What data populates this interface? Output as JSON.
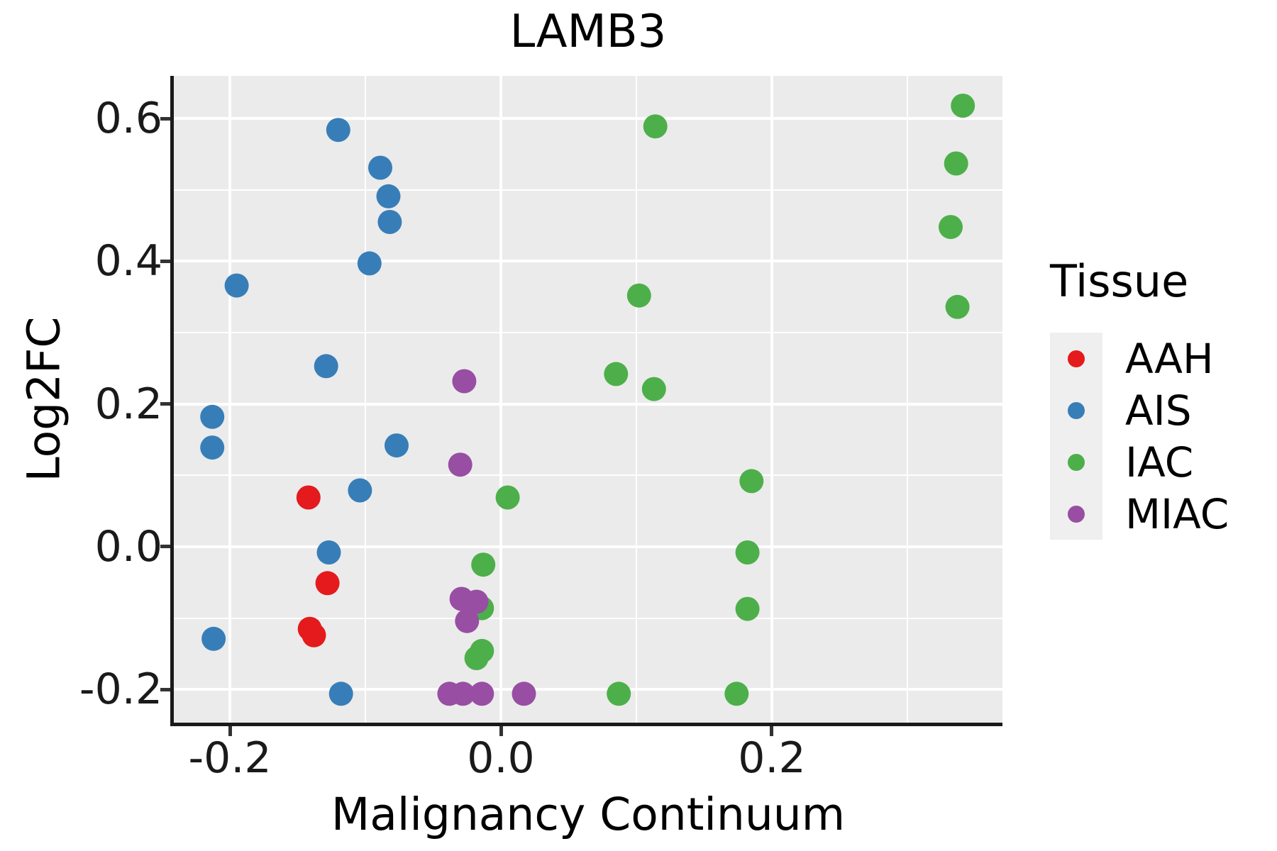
{
  "title": "LAMB3",
  "x_axis": {
    "title": "Malignancy Continuum"
  },
  "y_axis": {
    "title": "Log2FC"
  },
  "legend": {
    "title": "Tissue",
    "items": [
      {
        "label": "AAH",
        "color": "#e41a1c"
      },
      {
        "label": "AIS",
        "color": "#377eb8"
      },
      {
        "label": "IAC",
        "color": "#4daf4a"
      },
      {
        "label": "MIAC",
        "color": "#984ea3"
      }
    ]
  },
  "colors": {
    "panel_background": "#ebebeb",
    "gridline": "#ffffff",
    "legend_key": "#efefef",
    "axis_line": "#1a1a1a",
    "aah": "#e41a1c",
    "ais": "#377eb8",
    "iac": "#4daf4a",
    "miac": "#984ea3"
  },
  "chart_data": {
    "type": "scatter",
    "title": "LAMB3",
    "xlabel": "Malignancy Continuum",
    "ylabel": "Log2FC",
    "xlim": [
      -0.2414,
      0.3702
    ],
    "ylim": [
      -0.2464,
      0.6597
    ],
    "grid": true,
    "legend_position": "right",
    "x_major_ticks": [
      -0.2,
      0.0,
      0.2
    ],
    "x_major_tick_labels": [
      "-0.2",
      "0.0",
      "0.2"
    ],
    "x_minor_ticks": [
      -0.1,
      0.1,
      0.3
    ],
    "y_major_ticks": [
      0.6,
      0.4,
      0.2,
      0.0,
      -0.2
    ],
    "y_major_tick_labels": [
      "0.6",
      "0.4",
      "0.2",
      "0.0",
      "-0.2"
    ],
    "y_minor_ticks": [
      0.5,
      0.3,
      0.1,
      -0.1
    ],
    "point_radius_px": 17,
    "series": [
      {
        "name": "AAH",
        "color": "#e41a1c",
        "points": [
          [
            -0.142,
            0.069
          ],
          [
            -0.128,
            -0.051
          ],
          [
            -0.141,
            -0.115
          ],
          [
            -0.138,
            -0.124
          ]
        ]
      },
      {
        "name": "AIS",
        "color": "#377eb8",
        "points": [
          [
            -0.12,
            0.584
          ],
          [
            -0.089,
            0.531
          ],
          [
            -0.083,
            0.491
          ],
          [
            -0.082,
            0.455
          ],
          [
            -0.097,
            0.397
          ],
          [
            -0.195,
            0.366
          ],
          [
            -0.129,
            0.253
          ],
          [
            -0.213,
            0.182
          ],
          [
            -0.213,
            0.139
          ],
          [
            -0.077,
            0.142
          ],
          [
            -0.104,
            0.079
          ],
          [
            -0.127,
            -0.008
          ],
          [
            -0.212,
            -0.129
          ],
          [
            -0.118,
            -0.206
          ]
        ]
      },
      {
        "name": "IAC",
        "color": "#4daf4a",
        "points": [
          [
            0.114,
            0.589
          ],
          [
            0.341,
            0.618
          ],
          [
            0.336,
            0.537
          ],
          [
            0.332,
            0.448
          ],
          [
            0.337,
            0.336
          ],
          [
            0.102,
            0.352
          ],
          [
            0.085,
            0.242
          ],
          [
            0.113,
            0.221
          ],
          [
            0.185,
            0.092
          ],
          [
            0.005,
            0.069
          ],
          [
            -0.013,
            -0.025
          ],
          [
            0.182,
            -0.008
          ],
          [
            -0.014,
            -0.086
          ],
          [
            0.182,
            -0.087
          ],
          [
            -0.014,
            -0.146
          ],
          [
            -0.018,
            -0.156
          ],
          [
            0.087,
            -0.206
          ],
          [
            0.174,
            -0.206
          ]
        ]
      },
      {
        "name": "MIAC",
        "color": "#984ea3",
        "points": [
          [
            -0.027,
            0.232
          ],
          [
            -0.03,
            0.115
          ],
          [
            -0.029,
            -0.073
          ],
          [
            -0.018,
            -0.077
          ],
          [
            -0.025,
            -0.104
          ],
          [
            -0.038,
            -0.206
          ],
          [
            -0.028,
            -0.206
          ],
          [
            -0.014,
            -0.206
          ],
          [
            0.017,
            -0.206
          ]
        ]
      }
    ]
  }
}
